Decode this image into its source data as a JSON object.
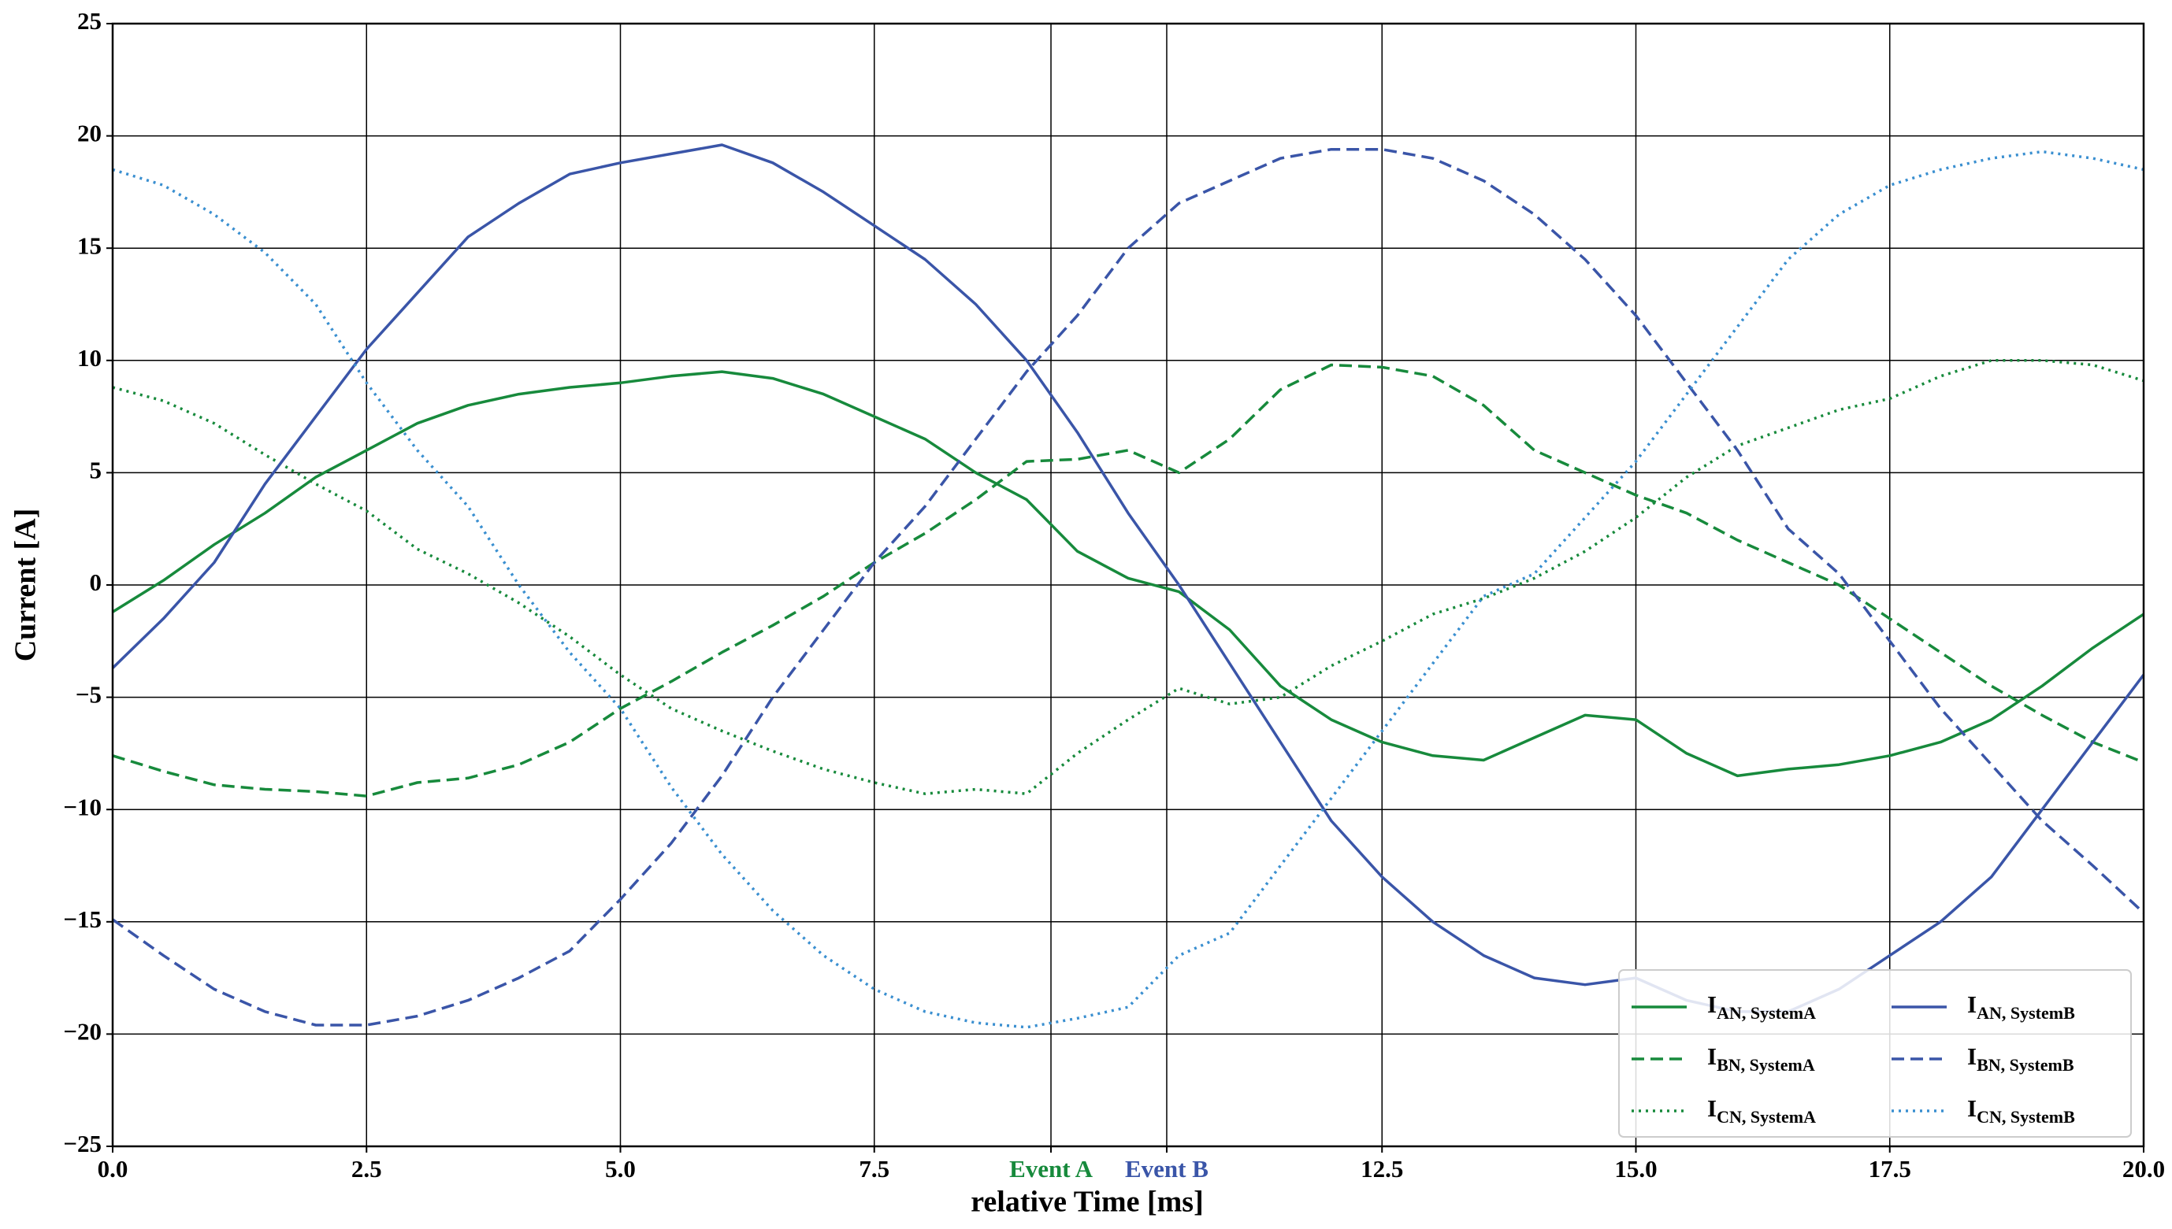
{
  "chart_data": {
    "type": "line",
    "xlabel": "relative Time [ms]",
    "ylabel": "Current [A]",
    "xlim": [
      0,
      20
    ],
    "ylim": [
      -25,
      25
    ],
    "xticks": [
      {
        "value": 0,
        "label": "0.0"
      },
      {
        "value": 2.5,
        "label": "2.5"
      },
      {
        "value": 5,
        "label": "5.0"
      },
      {
        "value": 7.5,
        "label": "7.5"
      },
      {
        "value": 9.24,
        "label": "Event A"
      },
      {
        "value": 10.38,
        "label": "Event B"
      },
      {
        "value": 12.5,
        "label": "12.5"
      },
      {
        "value": 15,
        "label": "15.0"
      },
      {
        "value": 17.5,
        "label": "17.5"
      },
      {
        "value": 20,
        "label": "20.0"
      }
    ],
    "xtick_colors": [
      "#000000",
      "#000000",
      "#000000",
      "#000000",
      "#178a3c",
      "#3a55a8",
      "#000000",
      "#000000",
      "#000000",
      "#000000"
    ],
    "yticks": [
      {
        "value": -25,
        "label": "−25"
      },
      {
        "value": -20,
        "label": "−20"
      },
      {
        "value": -15,
        "label": "−15"
      },
      {
        "value": -10,
        "label": "−10"
      },
      {
        "value": -5,
        "label": "−5"
      },
      0,
      5,
      10,
      15,
      20,
      25
    ],
    "grid": true,
    "legend": "lower right",
    "x": [
      0,
      0.5,
      1,
      1.5,
      2,
      2.5,
      3,
      3.5,
      4,
      4.5,
      5,
      5.5,
      6,
      6.5,
      7,
      7.5,
      8,
      8.5,
      9,
      9.5,
      10,
      10.5,
      11,
      11.5,
      12,
      12.5,
      13,
      13.5,
      14,
      14.5,
      15,
      15.5,
      16,
      16.5,
      17,
      17.5,
      18,
      18.5,
      19,
      19.5,
      20
    ],
    "series": [
      {
        "name": "I",
        "name_subscript": "AN, SystemA",
        "color": "#178a3c",
        "dash": "solid",
        "values": [
          -1.2,
          0.2,
          1.8,
          3.2,
          4.8,
          6.0,
          7.2,
          8.0,
          8.5,
          8.8,
          9.0,
          9.3,
          9.5,
          9.2,
          8.5,
          7.5,
          6.5,
          5.0,
          3.8,
          1.5,
          0.3,
          -0.3,
          -2.0,
          -4.5,
          -6.0,
          -7.0,
          -7.6,
          -7.8,
          -6.8,
          -5.8,
          -6.0,
          -7.5,
          -8.5,
          -8.2,
          -8.0,
          -7.6,
          -7.0,
          -6.0,
          -4.5,
          -2.8,
          -1.3
        ]
      },
      {
        "name": "I",
        "name_subscript": "BN, SystemA",
        "color": "#178a3c",
        "dash": "dashed",
        "values": [
          -7.6,
          -8.3,
          -8.9,
          -9.1,
          -9.2,
          -9.4,
          -8.8,
          -8.6,
          -8.0,
          -7.0,
          -5.5,
          -4.3,
          -3.0,
          -1.8,
          -0.5,
          1.0,
          2.3,
          3.8,
          5.5,
          5.6,
          6.0,
          5.0,
          6.5,
          8.7,
          9.8,
          9.7,
          9.3,
          8.0,
          6.0,
          5.0,
          4.0,
          3.2,
          2.0,
          1.0,
          0.0,
          -1.5,
          -3.0,
          -4.5,
          -5.8,
          -7.0,
          -7.9
        ]
      },
      {
        "name": "I",
        "name_subscript": "CN, SystemA",
        "color": "#178a3c",
        "dash": "dotted",
        "values": [
          8.8,
          8.2,
          7.2,
          5.8,
          4.5,
          3.3,
          1.6,
          0.5,
          -0.8,
          -2.3,
          -4.0,
          -5.5,
          -6.5,
          -7.4,
          -8.2,
          -8.8,
          -9.3,
          -9.1,
          -9.3,
          -7.5,
          -6.0,
          -4.6,
          -5.3,
          -5.0,
          -3.6,
          -2.5,
          -1.3,
          -0.6,
          0.3,
          1.5,
          3.0,
          4.8,
          6.2,
          7.0,
          7.8,
          8.3,
          9.3,
          10.0,
          10.0,
          9.8,
          9.1
        ]
      },
      {
        "name": "I",
        "name_subscript": "AN, SystemB",
        "color": "#3a55a8",
        "dash": "solid",
        "values": [
          -3.7,
          -1.5,
          1.0,
          4.5,
          7.5,
          10.5,
          13.0,
          15.5,
          17.0,
          18.3,
          18.8,
          19.2,
          19.6,
          18.8,
          17.5,
          16.0,
          14.5,
          12.5,
          10.0,
          6.8,
          3.2,
          0.0,
          -3.5,
          -7.0,
          -10.5,
          -13.0,
          -15.0,
          -16.5,
          -17.5,
          -17.8,
          -17.5,
          -18.5,
          -19.0,
          -19.0,
          -18.0,
          -16.5,
          -15.0,
          -13.0,
          -10.0,
          -7.0,
          -4.0
        ]
      },
      {
        "name": "I",
        "name_subscript": "BN, SystemB",
        "color": "#3a55a8",
        "dash": "dashed",
        "values": [
          -14.9,
          -16.5,
          -18.0,
          -19.0,
          -19.6,
          -19.6,
          -19.2,
          -18.5,
          -17.5,
          -16.3,
          -14.0,
          -11.5,
          -8.5,
          -5.0,
          -2.0,
          1.0,
          3.5,
          6.5,
          9.5,
          12.0,
          15.0,
          17.0,
          18.0,
          19.0,
          19.4,
          19.4,
          19.0,
          18.0,
          16.5,
          14.5,
          12.0,
          9.0,
          6.0,
          2.5,
          0.5,
          -2.5,
          -5.5,
          -8.0,
          -10.5,
          -12.5,
          -14.6
        ]
      },
      {
        "name": "I",
        "name_subscript": "CN, SystemB",
        "color": "#3a8fd0",
        "dash": "dotted",
        "values": [
          18.5,
          17.8,
          16.5,
          14.8,
          12.5,
          9.0,
          6.0,
          3.5,
          0.0,
          -3.0,
          -5.5,
          -9.0,
          -12.0,
          -14.5,
          -16.5,
          -18.0,
          -19.0,
          -19.5,
          -19.7,
          -19.3,
          -18.8,
          -16.5,
          -15.5,
          -12.5,
          -9.5,
          -6.5,
          -3.5,
          -0.5,
          0.5,
          3.0,
          5.5,
          8.5,
          11.5,
          14.5,
          16.5,
          17.8,
          18.5,
          19.0,
          19.3,
          19.0,
          18.5
        ]
      }
    ]
  }
}
